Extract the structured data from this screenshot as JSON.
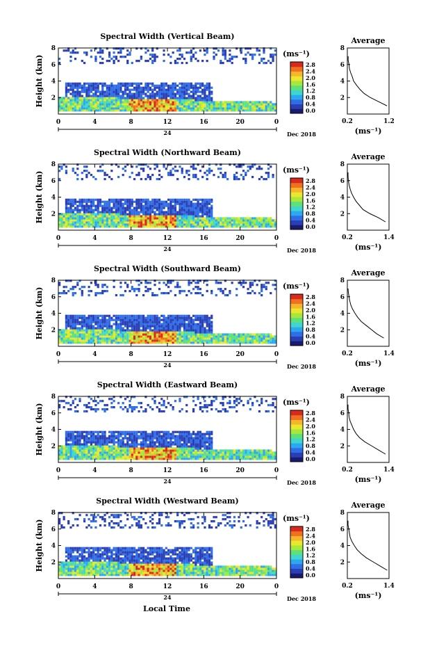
{
  "colorbar": {
    "unit_label": "(ms⁻¹)",
    "tick_labels": [
      "2.8",
      "2.4",
      "2.0",
      "1.6",
      "1.2",
      "0.8",
      "0.4",
      "0.0"
    ],
    "colors": [
      "#1a1a6e",
      "#2a3fb5",
      "#2f6ee6",
      "#2ba8f0",
      "#3fd6d0",
      "#5ee07a",
      "#a8e83a",
      "#e8e830",
      "#f7b62a",
      "#f07020",
      "#d82a1c"
    ]
  },
  "xaxis": {
    "ticks": [
      "0",
      "4",
      "8",
      "12",
      "16",
      "20",
      "0"
    ],
    "day_label": "24",
    "date_label": "Dec 2018",
    "xlabel": "Local Time"
  },
  "chart_data": [
    {
      "type": "heatmap",
      "title": "Spectral Width (Vertical Beam)",
      "ylabel": "Height (km)",
      "yticks": [
        "8",
        "6",
        "4",
        "2"
      ],
      "ylim": [
        0,
        8
      ],
      "xlim": [
        0,
        24
      ],
      "avg_title": "Average",
      "avg_xticks": [
        "0.2",
        "1.2"
      ],
      "avg_xlim": [
        0.2,
        1.2
      ],
      "avg_xlabel": "(ms⁻¹)",
      "profile": {
        "height": [
          1,
          1.5,
          2,
          2.5,
          3,
          3.5,
          4,
          4.5,
          5,
          5.5,
          6,
          6.5,
          7
        ],
        "width": [
          1.15,
          0.95,
          0.75,
          0.6,
          0.5,
          0.42,
          0.35,
          0.32,
          0.28,
          0.25,
          0.24,
          0.22,
          0.22
        ]
      }
    },
    {
      "type": "heatmap",
      "title": "Spectral Width (Northward Beam)",
      "ylabel": "Height (km)",
      "yticks": [
        "8",
        "6",
        "4",
        "2"
      ],
      "ylim": [
        0,
        8
      ],
      "xlim": [
        0,
        24
      ],
      "avg_title": "Average",
      "avg_xticks": [
        "0.2",
        "1.4"
      ],
      "avg_xlim": [
        0.2,
        1.4
      ],
      "avg_xlabel": "(ms⁻¹)",
      "profile": {
        "height": [
          1,
          1.5,
          2,
          2.5,
          3,
          3.5,
          4,
          4.5,
          5,
          5.5,
          6,
          6.5,
          7
        ],
        "width": [
          1.3,
          1.1,
          0.85,
          0.65,
          0.55,
          0.45,
          0.38,
          0.32,
          0.28,
          0.25,
          0.23,
          0.22,
          0.22
        ]
      }
    },
    {
      "type": "heatmap",
      "title": "Spectral Width (Southward Beam)",
      "ylabel": "Height (km)",
      "yticks": [
        "8",
        "6",
        "4",
        "2"
      ],
      "ylim": [
        0,
        8
      ],
      "xlim": [
        0,
        24
      ],
      "avg_title": "Average",
      "avg_xticks": [
        "0.2",
        "1.4"
      ],
      "avg_xlim": [
        0.2,
        1.4
      ],
      "avg_xlabel": "(ms⁻¹)",
      "profile": {
        "height": [
          1,
          1.5,
          2,
          2.5,
          3,
          3.5,
          4,
          4.5,
          5,
          5.5,
          6,
          6.5,
          7
        ],
        "width": [
          1.25,
          1.05,
          0.9,
          0.75,
          0.6,
          0.5,
          0.42,
          0.35,
          0.3,
          0.27,
          0.25,
          0.23,
          0.22
        ]
      }
    },
    {
      "type": "heatmap",
      "title": "Spectral Width (Eastward Beam)",
      "ylabel": "Height (km)",
      "yticks": [
        "8",
        "6",
        "4",
        "2"
      ],
      "ylim": [
        0,
        8
      ],
      "xlim": [
        0,
        24
      ],
      "avg_title": "Average",
      "avg_xticks": [
        "0.2",
        "1.4"
      ],
      "avg_xlim": [
        0.2,
        1.4
      ],
      "avg_xlabel": "(ms⁻¹)",
      "profile": {
        "height": [
          1,
          1.5,
          2,
          2.5,
          3,
          3.5,
          4,
          4.5,
          5,
          5.5,
          6,
          6.5,
          7
        ],
        "width": [
          1.3,
          1.1,
          0.9,
          0.7,
          0.55,
          0.45,
          0.38,
          0.33,
          0.28,
          0.25,
          0.24,
          0.22,
          0.22
        ]
      }
    },
    {
      "type": "heatmap",
      "title": "Spectral Width (Westward Beam)",
      "ylabel": "Height (km)",
      "yticks": [
        "8",
        "6",
        "4",
        "2"
      ],
      "ylim": [
        0,
        8
      ],
      "xlim": [
        0,
        24
      ],
      "avg_title": "Average",
      "avg_xticks": [
        "0.2",
        "1.4"
      ],
      "avg_xlim": [
        0.2,
        1.4
      ],
      "avg_xlabel": "(ms⁻¹)",
      "profile": {
        "height": [
          1,
          1.5,
          2,
          2.5,
          3,
          3.5,
          4,
          4.5,
          5,
          5.5,
          6,
          6.5,
          7
        ],
        "width": [
          1.35,
          1.15,
          0.95,
          0.75,
          0.6,
          0.48,
          0.4,
          0.33,
          0.28,
          0.26,
          0.24,
          0.22,
          0.22
        ]
      }
    }
  ]
}
